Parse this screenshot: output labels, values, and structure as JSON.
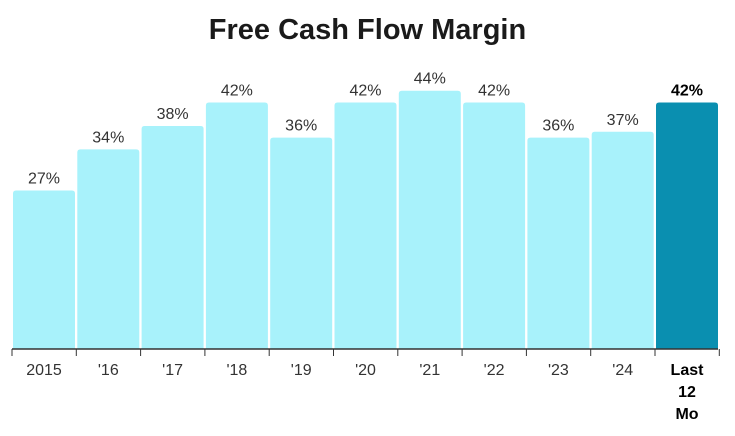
{
  "chart_data": {
    "type": "bar",
    "title": "Free Cash Flow Margin",
    "xlabel": "",
    "ylabel": "",
    "categories": [
      "2015",
      "'16",
      "'17",
      "'18",
      "'19",
      "'20",
      "'21",
      "'22",
      "'23",
      "'24",
      "Last 12 Mo"
    ],
    "values": [
      27,
      34,
      38,
      42,
      36,
      42,
      44,
      42,
      36,
      37,
      42
    ],
    "value_labels": [
      "27%",
      "34%",
      "38%",
      "42%",
      "36%",
      "42%",
      "44%",
      "42%",
      "36%",
      "37%",
      "42%"
    ],
    "highlight_index": 10,
    "ylim": [
      0,
      46
    ],
    "grid": false,
    "colors": {
      "bar": "#a8f2fb",
      "highlight": "#0a8fb0",
      "axis": "#333333"
    }
  }
}
